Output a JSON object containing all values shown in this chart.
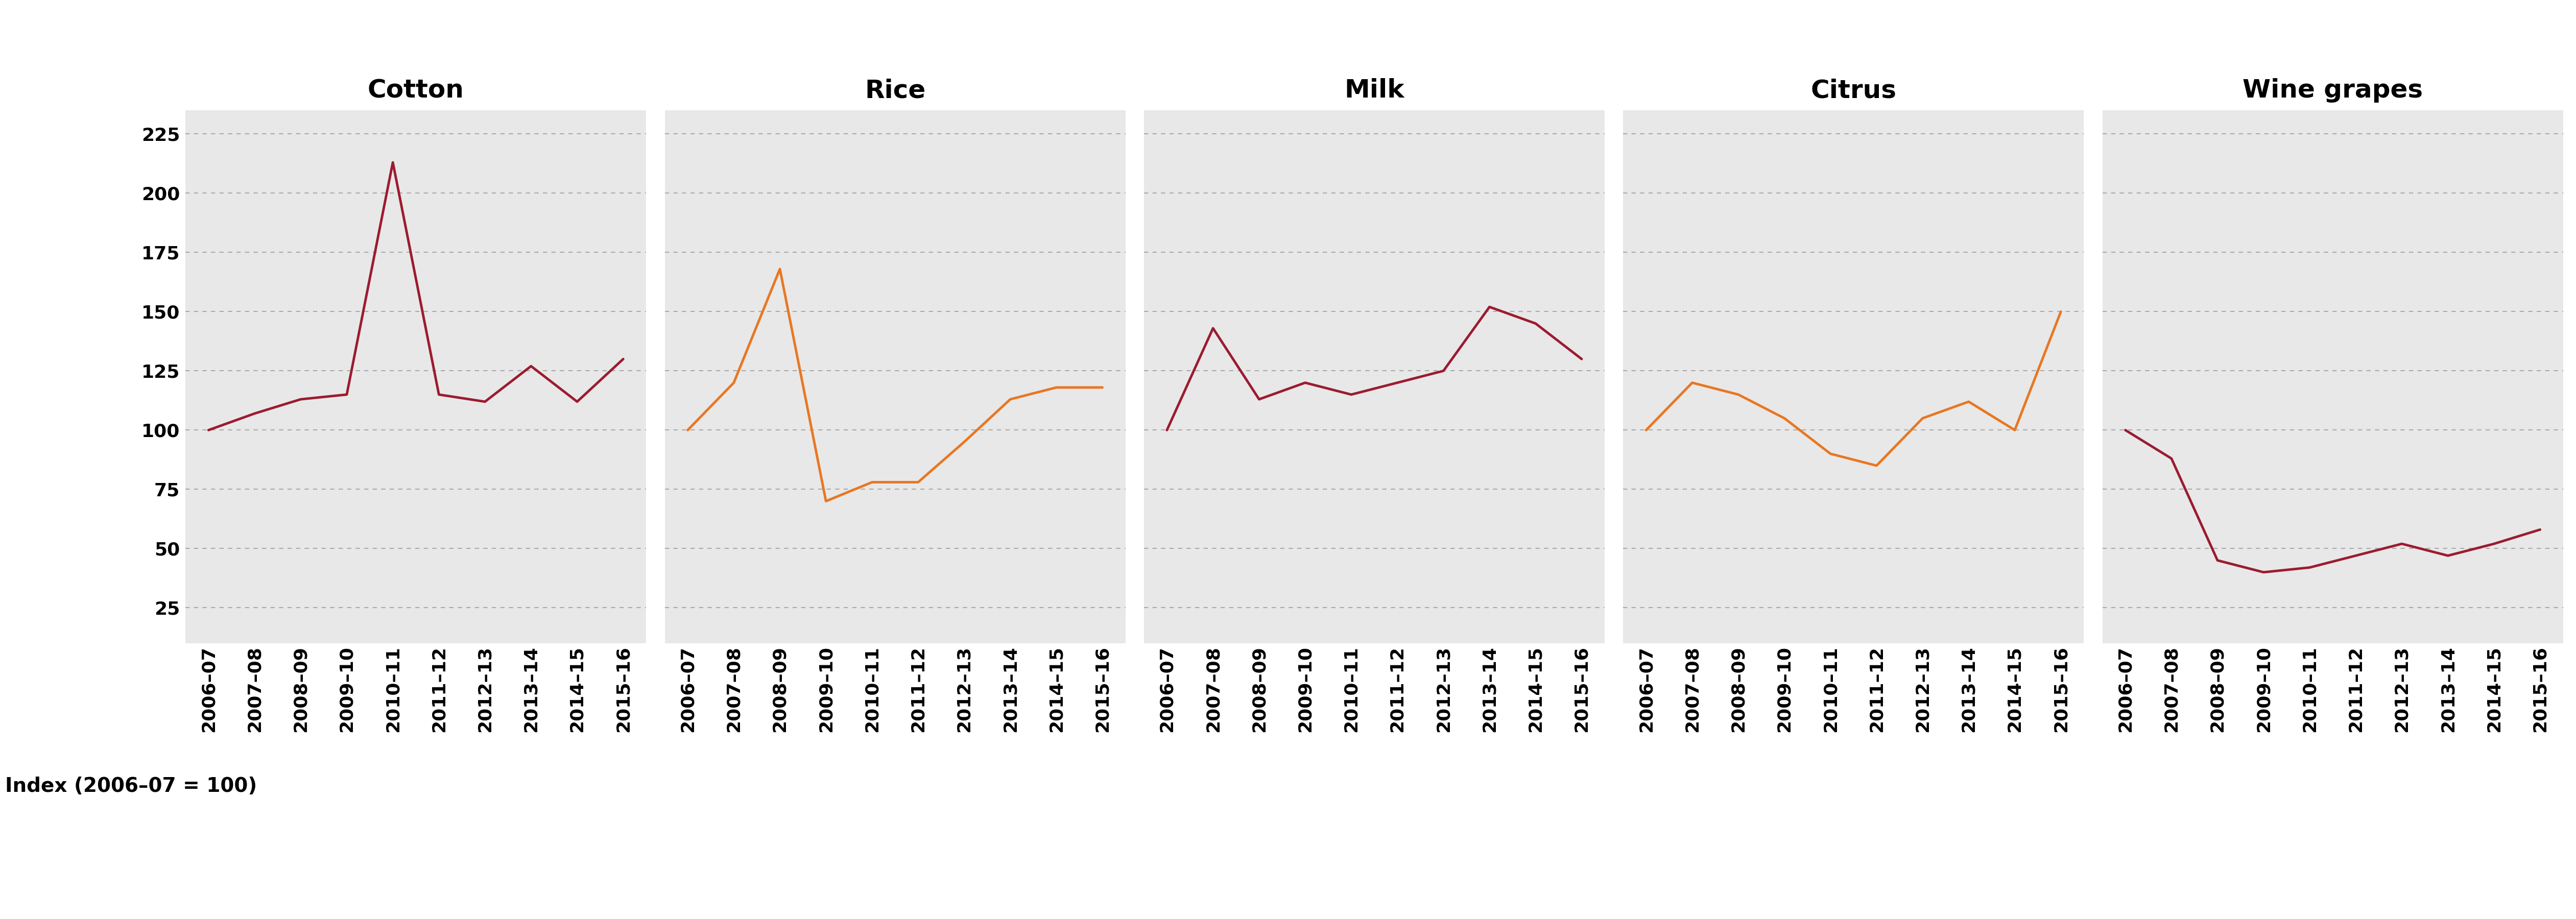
{
  "years": [
    "2006–07",
    "2007–08",
    "2008–09",
    "2009–10",
    "2010–11",
    "2011–12",
    "2012–13",
    "2013–14",
    "2014–15",
    "2015–16"
  ],
  "cotton": [
    100,
    107,
    113,
    115,
    213,
    115,
    112,
    127,
    112,
    130
  ],
  "rice": [
    100,
    120,
    168,
    70,
    78,
    78,
    95,
    113,
    118,
    118
  ],
  "milk": [
    100,
    143,
    113,
    120,
    115,
    120,
    125,
    152,
    145,
    130
  ],
  "citrus": [
    100,
    120,
    115,
    105,
    90,
    85,
    105,
    112,
    100,
    150
  ],
  "wine_grapes": [
    100,
    88,
    45,
    40,
    42,
    47,
    52,
    47,
    52,
    58
  ],
  "titles": [
    "Cotton",
    "Rice",
    "Milk",
    "Citrus",
    "Wine grapes"
  ],
  "dark_red": "#9B1B30",
  "orange": "#E87722",
  "bg_color": "#E8E8E8",
  "white": "#FFFFFF",
  "ylabel": "Index (2006–07 = 100)",
  "yticks": [
    25,
    50,
    75,
    100,
    125,
    150,
    175,
    200,
    225
  ],
  "ylim": [
    10,
    235
  ],
  "line_width": 3.5,
  "title_fontsize": 36,
  "tick_fontsize": 26,
  "ylabel_fontsize": 28
}
